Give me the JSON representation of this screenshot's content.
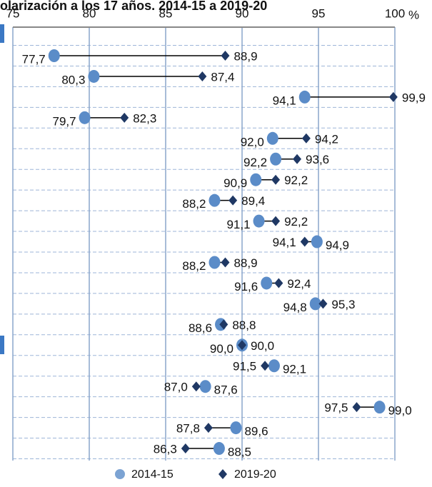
{
  "chart_data": {
    "type": "dumbbell",
    "title": "olarización a los 17 años. 2014-15 a 2019-20",
    "xlabel": "%",
    "xlim": [
      75,
      100
    ],
    "xticks": [
      75,
      80,
      85,
      90,
      95,
      100
    ],
    "grid": true,
    "legend": "bottom",
    "series": [
      {
        "name": "2014-15",
        "color": "#5b8cc8",
        "marker": "circle",
        "values": [
          77.7,
          80.3,
          94.1,
          79.7,
          92.0,
          92.2,
          90.9,
          88.2,
          91.1,
          94.9,
          88.2,
          91.6,
          94.8,
          88.6,
          90.0,
          92.1,
          87.6,
          99.0,
          89.6,
          88.5
        ],
        "value_labels": [
          "77,7",
          "80,3",
          "94,1",
          "79,7",
          "92,0",
          "92,2",
          "90,9",
          "88,2",
          "91,1",
          "94,9",
          "88,2",
          "91,6",
          "94,8",
          "88,6",
          "90,0",
          "92,1",
          "87,6",
          "99,0",
          "89,6",
          "88,5"
        ]
      },
      {
        "name": "2019-20",
        "color": "#1f3864",
        "marker": "diamond",
        "values": [
          88.9,
          87.4,
          99.9,
          82.3,
          94.2,
          93.6,
          92.2,
          89.4,
          92.2,
          94.1,
          88.9,
          92.4,
          95.3,
          88.8,
          90.0,
          91.5,
          87.0,
          97.5,
          87.8,
          86.3
        ],
        "value_labels": [
          "88,9",
          "87,4",
          "99,9",
          "82,3",
          "94,2",
          "93,6",
          "92,2",
          "89,4",
          "92,2",
          "94,1",
          "88,9",
          "92,4",
          "95,3",
          "88,8",
          "90,0",
          "91,5",
          "87,0",
          "97,5",
          "87,8",
          "86,3"
        ]
      }
    ]
  }
}
